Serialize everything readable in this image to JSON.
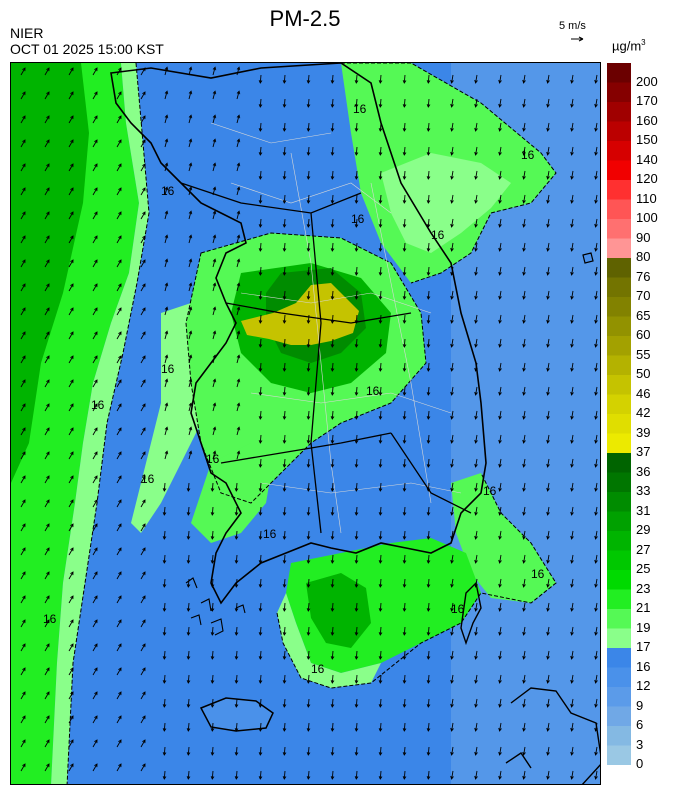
{
  "header": {
    "title": "PM-2.5",
    "source": "NIER",
    "datetime": "OCT 01 2025 15:00 KST"
  },
  "wind_scale": {
    "label": "5 m/s"
  },
  "legend": {
    "unit": "µg/m",
    "unit_superscript": "3",
    "levels": [
      {
        "label": "200",
        "color": "#6b0000"
      },
      {
        "label": "170",
        "color": "#850000"
      },
      {
        "label": "160",
        "color": "#a00000"
      },
      {
        "label": "150",
        "color": "#bb0000"
      },
      {
        "label": "140",
        "color": "#d60000"
      },
      {
        "label": "120",
        "color": "#f10000"
      },
      {
        "label": "110",
        "color": "#ff3030"
      },
      {
        "label": "100",
        "color": "#ff5555"
      },
      {
        "label": "90",
        "color": "#ff7070"
      },
      {
        "label": "80",
        "color": "#ff9595"
      },
      {
        "label": "76",
        "color": "#5f6200"
      },
      {
        "label": "70",
        "color": "#737400"
      },
      {
        "label": "65",
        "color": "#828200"
      },
      {
        "label": "60",
        "color": "#929200"
      },
      {
        "label": "55",
        "color": "#a3a100"
      },
      {
        "label": "50",
        "color": "#b4b200"
      },
      {
        "label": "46",
        "color": "#c5c300"
      },
      {
        "label": "42",
        "color": "#d4d200"
      },
      {
        "label": "39",
        "color": "#e0de00"
      },
      {
        "label": "37",
        "color": "#ecea00"
      },
      {
        "label": "36",
        "color": "#006400"
      },
      {
        "label": "33",
        "color": "#007600"
      },
      {
        "label": "31",
        "color": "#008c00"
      },
      {
        "label": "29",
        "color": "#00a100"
      },
      {
        "label": "27",
        "color": "#00b400"
      },
      {
        "label": "25",
        "color": "#00c800"
      },
      {
        "label": "23",
        "color": "#00da00"
      },
      {
        "label": "21",
        "color": "#22ee22"
      },
      {
        "label": "19",
        "color": "#55f955"
      },
      {
        "label": "17",
        "color": "#8aff8a"
      },
      {
        "label": "16",
        "color": "#3b86e8"
      },
      {
        "label": "12",
        "color": "#4a91ea"
      },
      {
        "label": "9",
        "color": "#5b9be9"
      },
      {
        "label": "6",
        "color": "#70a8e6"
      },
      {
        "label": "3",
        "color": "#84b9e3"
      },
      {
        "label": "0",
        "color": "#9ac8e4"
      }
    ]
  },
  "map": {
    "contour_label": "16",
    "colors": {
      "sea_low": "#3b86e8",
      "sea_lighter": "#5b9be9",
      "green_light": "#55f955",
      "green_pale": "#8aff8a",
      "green_mid": "#22ee22",
      "green_dark": "#00b400",
      "green_darker": "#008c00",
      "yellow_hotspot": "#c5c300",
      "wind_arrow": "#000000",
      "coastline": "#000000",
      "district_line": "#d8d8d8"
    }
  }
}
